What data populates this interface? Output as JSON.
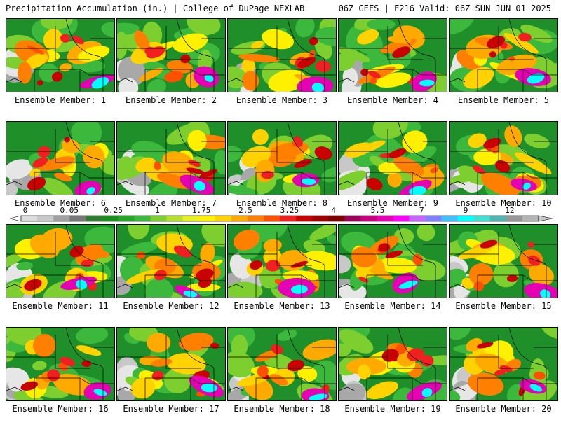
{
  "header": {
    "left_title": "Precipitation Accumulation (in.) | College of DuPage NEXLAB",
    "right_title": "06Z GEFS | F216 Valid: 06Z SUN JUN 01 2025"
  },
  "colors": {
    "background": "#ffffff",
    "scale": [
      "#dcdcdc",
      "#c8c8c8",
      "#a0a0a0",
      "#787878",
      "#2e7d32",
      "#1b8f1b",
      "#26a626",
      "#3cb93c",
      "#7ccf2e",
      "#b4e02c",
      "#e6f01e",
      "#fff000",
      "#ffd200",
      "#ffaa00",
      "#ff8000",
      "#ff5000",
      "#f02020",
      "#c80000",
      "#a00000",
      "#800000",
      "#9c0059",
      "#c8007d",
      "#e600b4",
      "#ff00ff",
      "#c864ff",
      "#8080ff",
      "#40c0ff",
      "#00ffff",
      "#40e0d0",
      "#50b4b4",
      "#969696",
      "#b4b4b4"
    ]
  },
  "colorbar": {
    "tick_labels": [
      "0",
      "0.05",
      "0.25",
      "1",
      "1.75",
      "2.5",
      "3.25",
      "4",
      "5.5",
      "7",
      "9",
      "12"
    ]
  },
  "panels": [
    {
      "member": 1,
      "label": "Ensemble Member: 1"
    },
    {
      "member": 2,
      "label": "Ensemble Member: 2"
    },
    {
      "member": 3,
      "label": "Ensemble Member: 3"
    },
    {
      "member": 4,
      "label": "Ensemble Member: 4"
    },
    {
      "member": 5,
      "label": "Ensemble Member: 5"
    },
    {
      "member": 6,
      "label": "Ensemble Member: 6"
    },
    {
      "member": 7,
      "label": "Ensemble Member: 7"
    },
    {
      "member": 8,
      "label": "Ensemble Member: 8"
    },
    {
      "member": 9,
      "label": "Ensemble Member: 9"
    },
    {
      "member": 10,
      "label": "Ensemble Member: 10"
    },
    {
      "member": 11,
      "label": "Ensemble Member: 11"
    },
    {
      "member": 12,
      "label": "Ensemble Member: 12"
    },
    {
      "member": 13,
      "label": "Ensemble Member: 13"
    },
    {
      "member": 14,
      "label": "Ensemble Member: 14"
    },
    {
      "member": 15,
      "label": "Ensemble Member: 15"
    },
    {
      "member": 16,
      "label": "Ensemble Member: 16"
    },
    {
      "member": 17,
      "label": "Ensemble Member: 17"
    },
    {
      "member": 18,
      "label": "Ensemble Member: 18"
    },
    {
      "member": 19,
      "label": "Ensemble Member: 19"
    },
    {
      "member": 20,
      "label": "Ensemble Member: 20"
    }
  ]
}
